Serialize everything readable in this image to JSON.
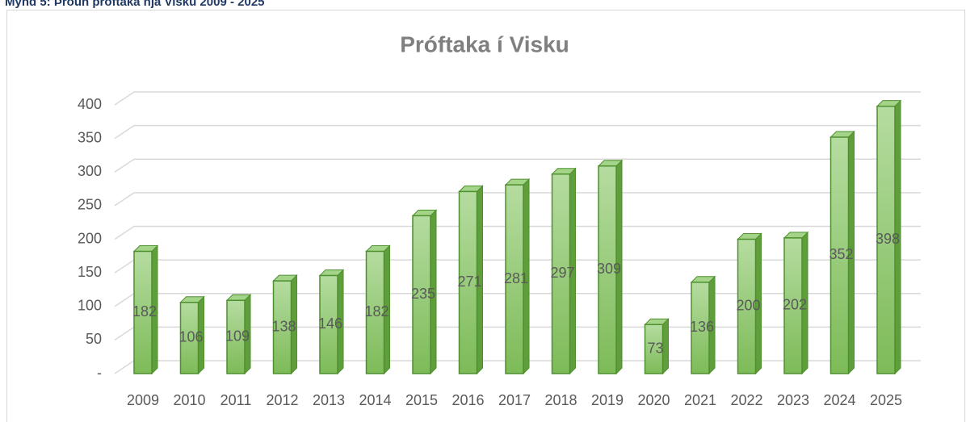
{
  "caption": "Mynd 5: Þróun próftaka hjá Visku 2009 - 2025",
  "chart_data": {
    "type": "bar3d",
    "title": "Próftaka í Visku",
    "categories": [
      "2009",
      "2010",
      "2011",
      "2012",
      "2013",
      "2014",
      "2015",
      "2016",
      "2017",
      "2018",
      "2019",
      "2020",
      "2021",
      "2022",
      "2023",
      "2024",
      "2025"
    ],
    "values": [
      182,
      106,
      109,
      138,
      146,
      182,
      235,
      271,
      281,
      297,
      309,
      73,
      136,
      200,
      202,
      352,
      398
    ],
    "color": "#8cc56a",
    "ylim": [
      0,
      400
    ],
    "yticks": [
      {
        "value": 0,
        "label": "-"
      },
      50,
      100,
      150,
      200,
      250,
      300,
      350,
      400
    ],
    "grid": true
  }
}
